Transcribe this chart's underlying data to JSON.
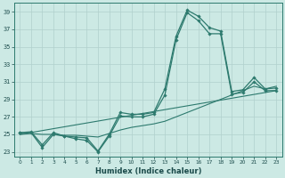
{
  "xlabel": "Humidex (Indice chaleur)",
  "bg_color": "#cce9e4",
  "grid_color": "#b0d0cc",
  "line_color": "#2d7a6e",
  "xlim": [
    -0.5,
    23.5
  ],
  "ylim": [
    22.5,
    40.0
  ],
  "yticks": [
    23,
    25,
    27,
    29,
    31,
    33,
    35,
    37,
    39
  ],
  "xticks": [
    0,
    1,
    2,
    3,
    4,
    5,
    6,
    7,
    8,
    9,
    10,
    11,
    12,
    13,
    14,
    15,
    16,
    17,
    18,
    19,
    20,
    21,
    22,
    23
  ],
  "line1_x": [
    0,
    1,
    2,
    3,
    4,
    5,
    6,
    7,
    8,
    9,
    10,
    11,
    12,
    13,
    14,
    15,
    16,
    17,
    18,
    19,
    20,
    21,
    22,
    23
  ],
  "line1_y": [
    25.2,
    25.3,
    23.8,
    25.2,
    24.8,
    24.7,
    24.6,
    23.1,
    25.0,
    27.5,
    27.3,
    27.3,
    27.5,
    30.2,
    36.2,
    39.2,
    38.5,
    37.2,
    36.8,
    29.9,
    30.1,
    31.5,
    30.2,
    30.3
  ],
  "line2_x": [
    0,
    1,
    2,
    3,
    4,
    5,
    6,
    7,
    8,
    9,
    10,
    11,
    12,
    13,
    14,
    15,
    16,
    17,
    18,
    19,
    20,
    21,
    22,
    23
  ],
  "line2_y": [
    25.2,
    25.2,
    23.5,
    25.0,
    24.8,
    24.5,
    24.3,
    23.0,
    24.8,
    27.1,
    27.0,
    27.0,
    27.3,
    29.5,
    35.8,
    38.9,
    38.0,
    36.5,
    36.5,
    29.6,
    29.8,
    31.0,
    30.0,
    30.0
  ],
  "line3_x": [
    0,
    1,
    2,
    3,
    4,
    5,
    6,
    7,
    9,
    10,
    11,
    12,
    13,
    14,
    15,
    16,
    17,
    18,
    19,
    20,
    21,
    22,
    23
  ],
  "line3_y": [
    25.0,
    25.1,
    25.0,
    25.0,
    24.9,
    24.9,
    24.8,
    24.7,
    25.5,
    25.8,
    26.0,
    26.2,
    26.5,
    27.0,
    27.5,
    28.0,
    28.5,
    29.0,
    29.5,
    30.0,
    30.5,
    30.2,
    30.5
  ],
  "line4_x": [
    0,
    23
  ],
  "line4_y": [
    25.0,
    30.0
  ]
}
